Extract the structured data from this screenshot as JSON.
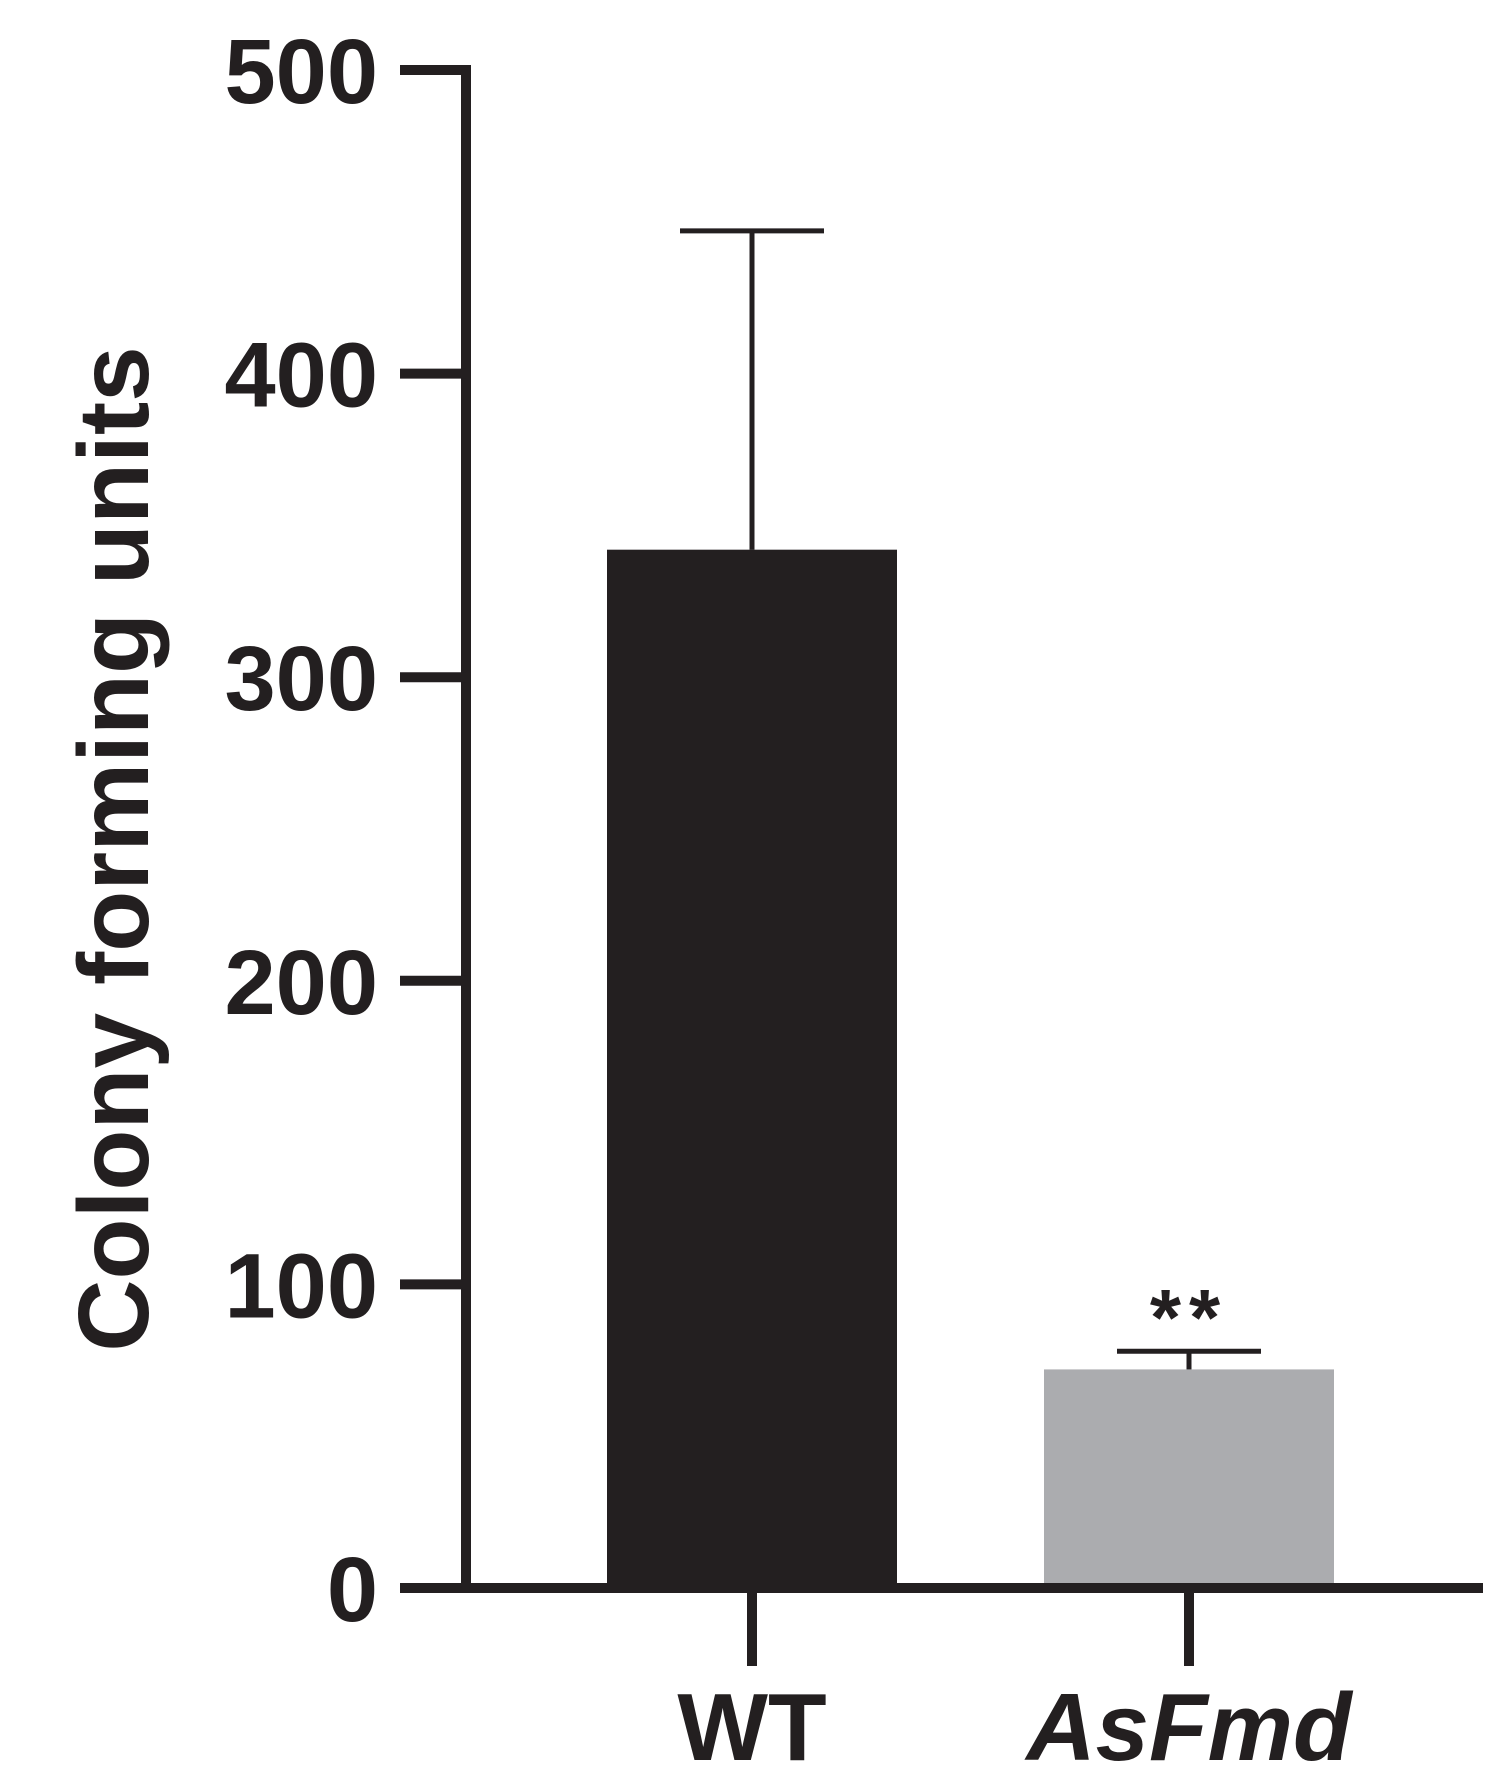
{
  "chart_data": {
    "type": "bar",
    "title": "",
    "xlabel": "",
    "ylabel": "Colony forming units",
    "ylim": [
      0,
      500
    ],
    "yticks": [
      0,
      100,
      200,
      300,
      400,
      500
    ],
    "categories": [
      "WT",
      "AsFmd"
    ],
    "category_italic": [
      false,
      true
    ],
    "values": [
      342,
      72
    ],
    "errors": [
      105,
      6
    ],
    "bar_colors": [
      "#231f20",
      "#abacaf"
    ],
    "annotations": [
      {
        "category": "AsFmd",
        "text": "**"
      }
    ],
    "grid": false,
    "legend": "none"
  }
}
